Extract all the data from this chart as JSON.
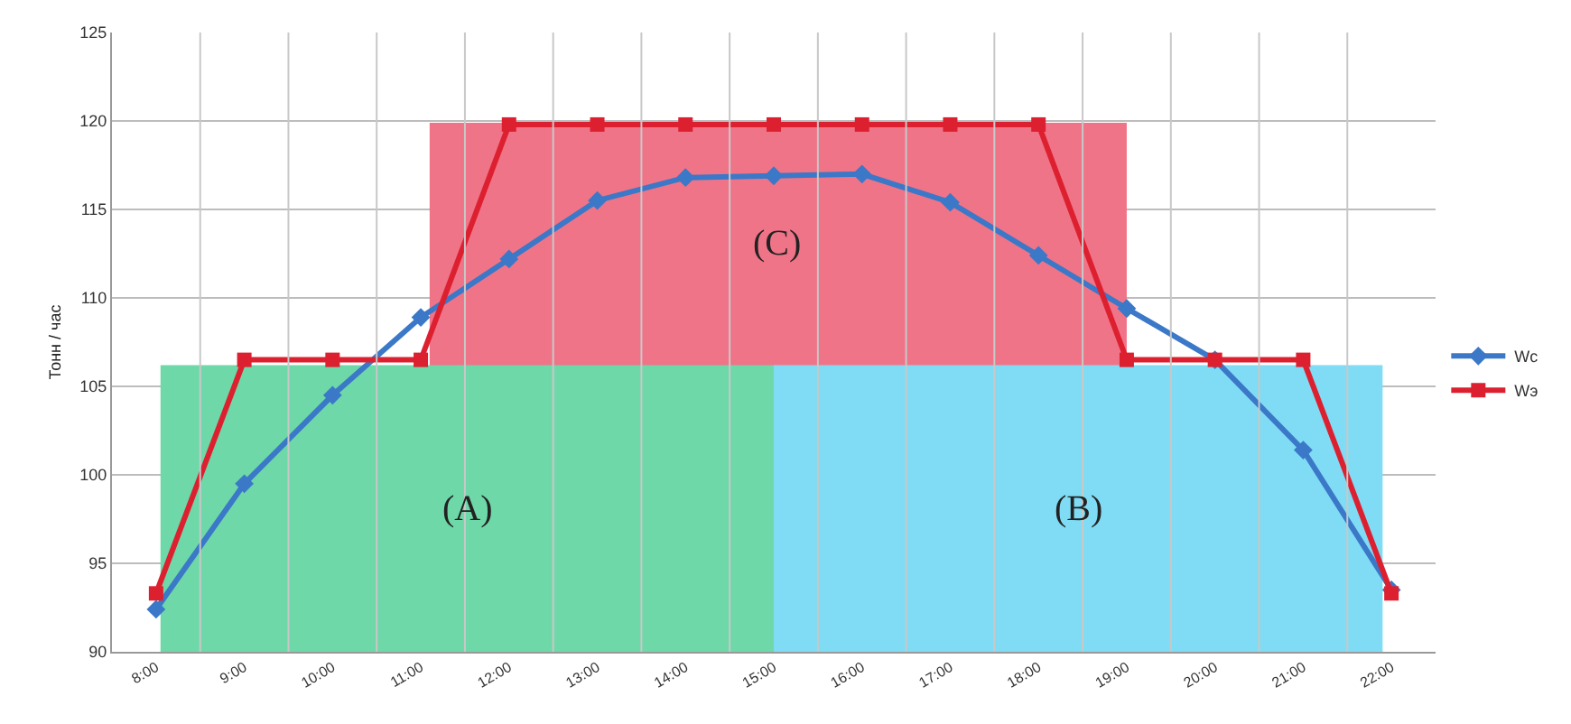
{
  "chart_data": {
    "type": "line",
    "ylabel": "Тонн / час",
    "x": [
      8,
      9,
      10,
      11,
      12,
      13,
      14,
      15,
      16,
      17,
      18,
      19,
      20,
      21,
      22
    ],
    "xlim": [
      7.5,
      22.5
    ],
    "xticks": [
      {
        "value": 8,
        "label": "8:00"
      },
      {
        "value": 9,
        "label": "9:00"
      },
      {
        "value": 10,
        "label": "10:00"
      },
      {
        "value": 11,
        "label": "11:00"
      },
      {
        "value": 12,
        "label": "12:00"
      },
      {
        "value": 13,
        "label": "13:00"
      },
      {
        "value": 14,
        "label": "14:00"
      },
      {
        "value": 15,
        "label": "15:00"
      },
      {
        "value": 16,
        "label": "16:00"
      },
      {
        "value": 17,
        "label": "17:00"
      },
      {
        "value": 18,
        "label": "18:00"
      },
      {
        "value": 19,
        "label": "19:00"
      },
      {
        "value": 20,
        "label": "20:00"
      },
      {
        "value": 21,
        "label": "21:00"
      },
      {
        "value": 22,
        "label": "22:00"
      }
    ],
    "ylim": [
      90,
      125
    ],
    "yticks": [
      90,
      95,
      100,
      105,
      110,
      115,
      120,
      125
    ],
    "grid": true,
    "legend": "right",
    "series": [
      {
        "type": "area",
        "color": "#f07488",
        "x": [
          11.1,
          19
        ],
        "values": [
          119.9,
          119.9
        ]
      },
      {
        "type": "area",
        "color": "#6ed8a8",
        "x": [
          8.05,
          15
        ],
        "values": [
          106.2,
          106.2
        ]
      },
      {
        "type": "area",
        "color": "#7fdcf4",
        "x": [
          15,
          21.9
        ],
        "values": [
          106.2,
          106.2
        ]
      },
      {
        "name": "Wс",
        "color": "#3b78c8",
        "marker": "diamond",
        "values": [
          92.4,
          99.5,
          104.5,
          108.9,
          112.2,
          115.5,
          116.8,
          116.9,
          117.0,
          115.4,
          112.4,
          109.4,
          106.5,
          101.4,
          93.5
        ]
      },
      {
        "name": "Wэ",
        "color": "#dd2030",
        "marker": "square",
        "values": [
          93.3,
          106.5,
          106.5,
          106.5,
          119.8,
          119.8,
          119.8,
          119.8,
          119.8,
          119.8,
          119.8,
          106.5,
          106.5,
          106.5,
          93.3
        ]
      }
    ],
    "annotations": [
      "(C)",
      "(A)",
      "(B)"
    ]
  }
}
